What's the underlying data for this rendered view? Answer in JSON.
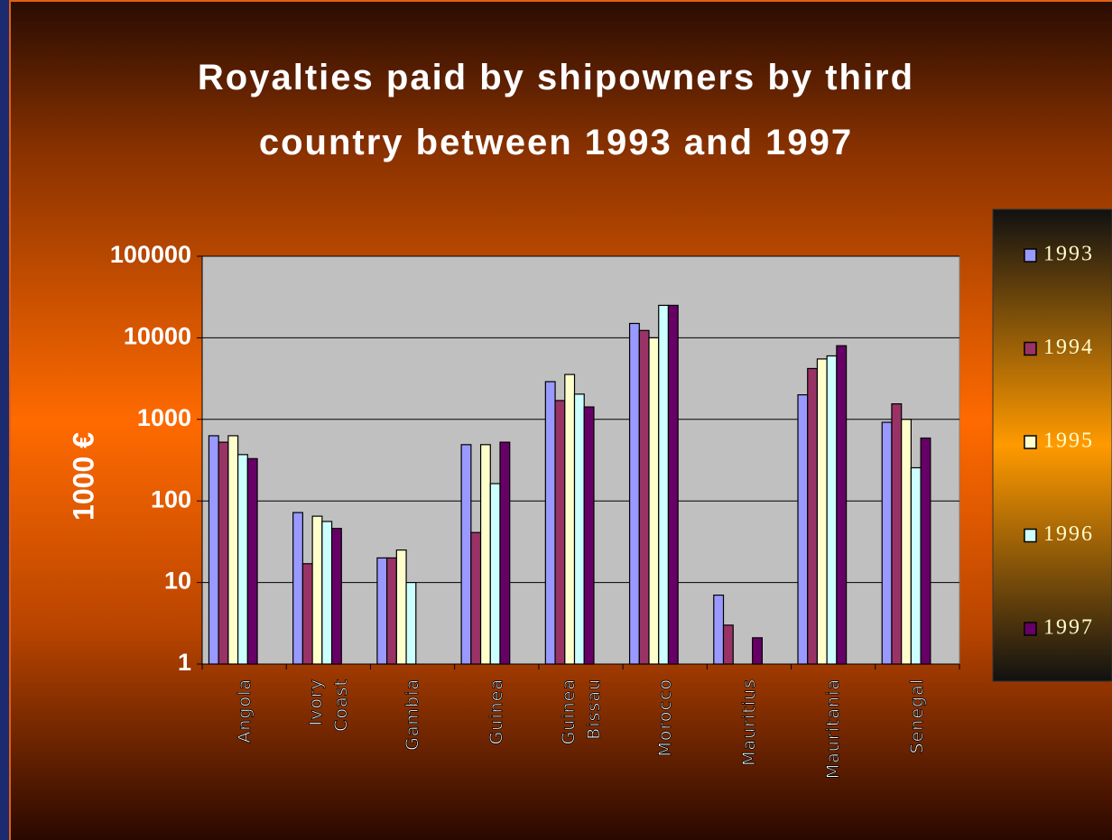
{
  "chart_data": {
    "type": "bar",
    "title": "Royalties paid by shipowners by third country between 1993 and 1997",
    "ylabel": "1000 €",
    "categories": [
      "Angola",
      "Ivory Coast",
      "Gambia",
      "Guinea",
      "Guinea Bissau",
      "Morocco",
      "Mauritius",
      "Mauritania",
      "Senegal"
    ],
    "series": [
      {
        "name": "1993",
        "color": "#9999ff",
        "values": [
          630,
          72,
          20,
          490,
          2900,
          15000,
          7,
          2000,
          920
        ]
      },
      {
        "name": "1994",
        "color": "#993366",
        "values": [
          525,
          17,
          20,
          41,
          1700,
          12300,
          3,
          4200,
          1550
        ]
      },
      {
        "name": "1995",
        "color": "#ffffcc",
        "values": [
          630,
          65,
          25,
          490,
          3550,
          10000,
          null,
          5500,
          1000
        ]
      },
      {
        "name": "1996",
        "color": "#ccffff",
        "values": [
          370,
          56,
          10,
          163,
          2040,
          25000,
          null,
          6000,
          255
        ]
      },
      {
        "name": "1997",
        "color": "#660066",
        "values": [
          330,
          46,
          null,
          525,
          1420,
          25000,
          2.1,
          8000,
          590
        ]
      }
    ],
    "ylim": [
      1,
      100000
    ],
    "yticks": [
      1,
      10,
      100,
      1000,
      10000,
      100000
    ],
    "log_scale": true,
    "grid": true,
    "legend": "right"
  }
}
